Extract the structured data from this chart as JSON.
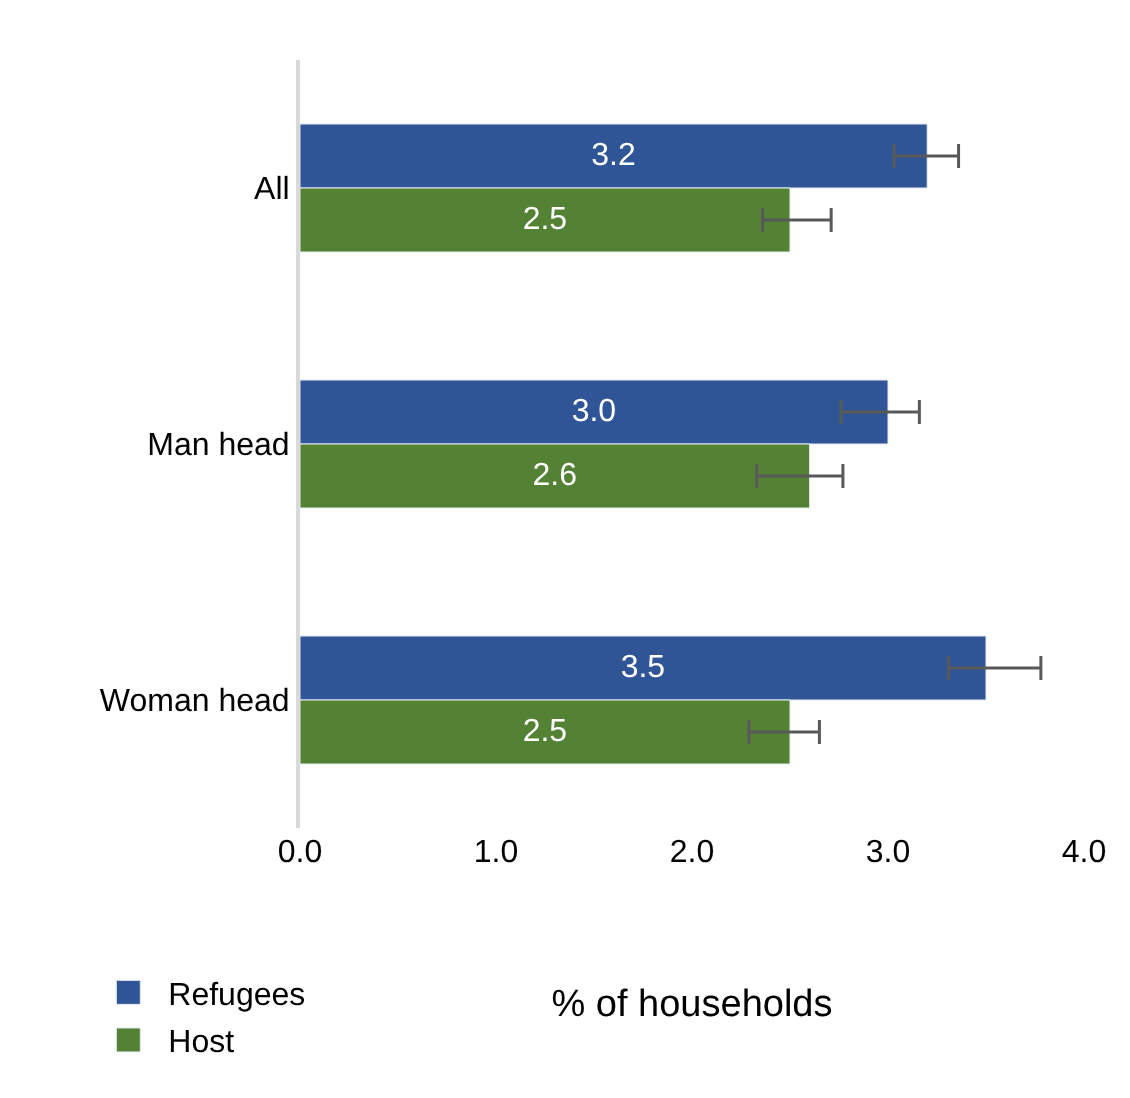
{
  "chart_data": {
    "type": "bar",
    "orientation": "horizontal",
    "categories": [
      "All",
      "Man head",
      "Woman head"
    ],
    "series": [
      {
        "name": "Refugees",
        "color": "#2f5597",
        "values": [
          3.2,
          3.0,
          3.5
        ],
        "value_labels": [
          "3.2",
          "3.0",
          "3.5"
        ],
        "errors": [
          [
            3.03,
            3.36
          ],
          [
            2.76,
            3.16
          ],
          [
            3.31,
            3.78
          ]
        ]
      },
      {
        "name": "Host",
        "color": "#548235",
        "values": [
          2.5,
          2.6,
          2.5
        ],
        "value_labels": [
          "2.5",
          "2.6",
          "2.5"
        ],
        "errors": [
          [
            2.36,
            2.71
          ],
          [
            2.33,
            2.77
          ],
          [
            2.29,
            2.65
          ]
        ]
      }
    ],
    "xlabel": "% of households",
    "xlim": [
      0,
      4
    ],
    "xticks": [
      {
        "value": 0,
        "label": "0.0"
      },
      {
        "value": 1,
        "label": "1.0"
      },
      {
        "value": 2,
        "label": "2.0"
      },
      {
        "value": 3,
        "label": "3.0"
      },
      {
        "value": 4,
        "label": "4.0"
      }
    ],
    "legend": "bottom left"
  }
}
